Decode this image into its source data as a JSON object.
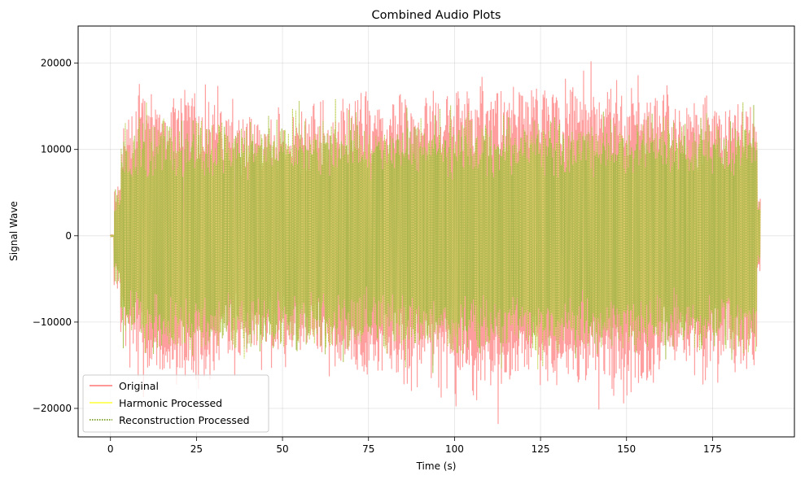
{
  "chart_data": {
    "type": "line",
    "title": "Combined Audio Plots",
    "xlabel": "Time (s)",
    "ylabel": "Signal Wave",
    "xlim": [
      -9.4,
      198.8
    ],
    "ylim": [
      -23300,
      24300
    ],
    "x_ticks": [
      0,
      25,
      50,
      75,
      100,
      125,
      150,
      175
    ],
    "x_tick_labels": [
      "0",
      "25",
      "50",
      "75",
      "100",
      "125",
      "150",
      "175"
    ],
    "y_ticks": [
      -20000,
      -10000,
      0,
      10000,
      20000
    ],
    "y_tick_labels": [
      "−20000",
      "−10000",
      "0",
      "10000",
      "20000"
    ],
    "grid": true,
    "legend_position": "lower-left",
    "signal_duration_s": 189,
    "signal_start_s": 1,
    "series": [
      {
        "name": "Original",
        "color": "#ff9999",
        "style": "solid",
        "segments": [
          {
            "x": [
              0,
              1
            ],
            "amp": 200
          },
          {
            "x": [
              1,
              3
            ],
            "amp": 7000
          },
          {
            "x": [
              3,
              8
            ],
            "amp": 13500
          },
          {
            "x": [
              8,
              32
            ],
            "amp": 17500
          },
          {
            "x": [
              32,
              65
            ],
            "amp": 14500
          },
          {
            "x": [
              65,
              70
            ],
            "amp": 16500
          },
          {
            "x": [
              70,
              100
            ],
            "amp": 17000
          },
          {
            "x": [
              100,
              160
            ],
            "amp": 18500
          },
          {
            "x": [
              160,
              188
            ],
            "amp": 16500
          },
          {
            "x": [
              188,
              189
            ],
            "amp": 4500
          }
        ]
      },
      {
        "name": "Harmonic Processed",
        "color": "#ffff66",
        "style": "solid",
        "segments": [
          {
            "x": [
              0,
              1
            ],
            "amp": 150
          },
          {
            "x": [
              1,
              3
            ],
            "amp": 6000
          },
          {
            "x": [
              3,
              8
            ],
            "amp": 12000
          },
          {
            "x": [
              8,
              188
            ],
            "amp": 14000
          },
          {
            "x": [
              188,
              189
            ],
            "amp": 4000
          }
        ]
      },
      {
        "name": "Reconstruction Processed",
        "color": "#8aa83c",
        "style": "dotted",
        "segments": [
          {
            "x": [
              0,
              1
            ],
            "amp": 150
          },
          {
            "x": [
              1,
              3
            ],
            "amp": 6000
          },
          {
            "x": [
              3,
              8
            ],
            "amp": 12000
          },
          {
            "x": [
              8,
              188
            ],
            "amp": 14000
          },
          {
            "x": [
              188,
              189
            ],
            "amp": 4000
          }
        ]
      }
    ]
  }
}
